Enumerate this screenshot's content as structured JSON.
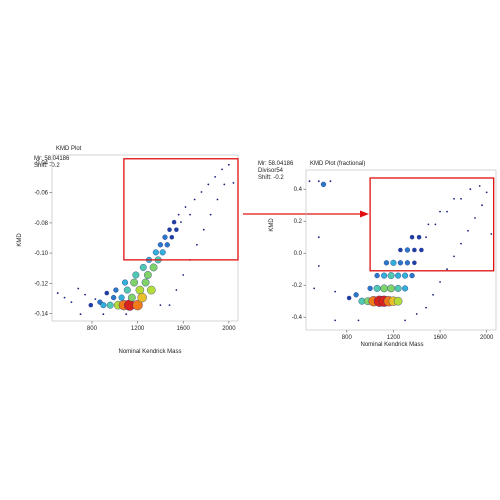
{
  "colors": {
    "bubble_scale": [
      "#1a237e",
      "#1e3fa8",
      "#2a78c8",
      "#33b0d8",
      "#4fc9b0",
      "#7fd36a",
      "#b5dd3a",
      "#e8c12a",
      "#f07a1a",
      "#d8231c"
    ],
    "highlight_box": "#e01010",
    "plot_border": "#bbbbbb",
    "point": "#1a237e"
  },
  "chart_data": [
    {
      "type": "scatter",
      "panel_title": "KMD Plot",
      "info_lines": [
        "Mr: 58.04186",
        "Shift: -0.2"
      ],
      "xlabel": "Nominal Kendrick Mass",
      "ylabel": "KMD",
      "xlim": [
        450,
        2080
      ],
      "ylim": [
        -0.145,
        -0.035
      ],
      "xticks": [
        800,
        1200,
        1600,
        2000
      ],
      "xtick_labels": [
        "800",
        "1200",
        "1600",
        "2000"
      ],
      "yticks": [
        -0.04,
        -0.06,
        -0.08,
        -0.1,
        -0.12,
        -0.14
      ],
      "ytick_labels": [
        "-0.04",
        "-0.06",
        "-0.08",
        "-0.10",
        "-0.12",
        "-0.14"
      ],
      "highlight_region": {
        "x": [
          1080,
          2080
        ],
        "y": [
          -0.1045,
          -0.0375
        ]
      },
      "grid": false,
      "points": [
        [
          500,
          -0.1265,
          0
        ],
        [
          560,
          -0.1295,
          0
        ],
        [
          620,
          -0.1325,
          0
        ],
        [
          680,
          -0.1235,
          0
        ],
        [
          740,
          -0.1275,
          0
        ],
        [
          790,
          -0.1345,
          1
        ],
        [
          830,
          -0.1305,
          0
        ],
        [
          870,
          -0.1325,
          2
        ],
        [
          900,
          -0.1345,
          3
        ],
        [
          930,
          -0.1265,
          1
        ],
        [
          960,
          -0.1345,
          4
        ],
        [
          990,
          -0.1295,
          2
        ],
        [
          1010,
          -0.1245,
          2
        ],
        [
          1030,
          -0.1345,
          6
        ],
        [
          1060,
          -0.1295,
          3
        ],
        [
          1080,
          -0.1345,
          8
        ],
        [
          1090,
          -0.1195,
          3
        ],
        [
          1110,
          -0.1245,
          4
        ],
        [
          1130,
          -0.1345,
          9
        ],
        [
          1150,
          -0.1295,
          5
        ],
        [
          1170,
          -0.1195,
          5
        ],
        [
          1185,
          -0.1145,
          4
        ],
        [
          1200,
          -0.1345,
          8
        ],
        [
          1220,
          -0.1245,
          6
        ],
        [
          1240,
          -0.1295,
          7
        ],
        [
          1250,
          -0.1095,
          4
        ],
        [
          1270,
          -0.1195,
          5
        ],
        [
          1290,
          -0.1145,
          5
        ],
        [
          1300,
          -0.1045,
          3
        ],
        [
          1320,
          -0.1245,
          6
        ],
        [
          1340,
          -0.1095,
          5
        ],
        [
          1360,
          -0.0995,
          3
        ],
        [
          1380,
          -0.1045,
          4
        ],
        [
          1400,
          -0.0945,
          2
        ],
        [
          1420,
          -0.0995,
          3
        ],
        [
          1440,
          -0.0895,
          2
        ],
        [
          1460,
          -0.0945,
          2
        ],
        [
          1480,
          -0.0845,
          1
        ],
        [
          1500,
          -0.0895,
          1
        ],
        [
          1520,
          -0.0795,
          1
        ],
        [
          1540,
          -0.0845,
          1
        ],
        [
          1560,
          -0.0745,
          0
        ],
        [
          1580,
          -0.0795,
          0
        ],
        [
          1620,
          -0.0695,
          0
        ],
        [
          1660,
          -0.0745,
          0
        ],
        [
          1700,
          -0.0645,
          0
        ],
        [
          1760,
          -0.0595,
          0
        ],
        [
          1820,
          -0.0545,
          0
        ],
        [
          1880,
          -0.0495,
          0
        ],
        [
          1940,
          -0.0445,
          0
        ],
        [
          2000,
          -0.0415,
          0
        ],
        [
          1960,
          -0.0545,
          0
        ],
        [
          1900,
          -0.0645,
          0
        ],
        [
          1840,
          -0.0745,
          0
        ],
        [
          1780,
          -0.0845,
          0
        ],
        [
          1720,
          -0.0945,
          0
        ],
        [
          1660,
          -0.1045,
          0
        ],
        [
          1600,
          -0.1145,
          0
        ],
        [
          1540,
          -0.1245,
          0
        ],
        [
          1480,
          -0.1345,
          0
        ],
        [
          1400,
          -0.1345,
          0
        ],
        [
          700,
          -0.1405,
          0
        ],
        [
          900,
          -0.1405,
          0
        ],
        [
          1100,
          -0.1405,
          0
        ],
        [
          2040,
          -0.0535,
          0
        ]
      ]
    },
    {
      "type": "scatter",
      "panel_title": "KMD Plot (fractional)",
      "info_lines": [
        "Mr: 58.04186",
        "Divisor54",
        "Shift: -0.2"
      ],
      "xlabel": "Nominal Kendrick Mass",
      "ylabel": "KMD",
      "xlim": [
        450,
        2080
      ],
      "ylim": [
        -0.48,
        0.52
      ],
      "xticks": [
        800,
        1200,
        1600,
        2000
      ],
      "xtick_labels": [
        "800",
        "1200",
        "1600",
        "2000"
      ],
      "yticks": [
        0.4,
        0.2,
        0.0,
        -0.2,
        -0.4
      ],
      "ytick_labels": [
        "0.4",
        "0.2",
        "0.0",
        "-0.2",
        "-0.4"
      ],
      "highlight_region": {
        "x": [
          1000,
          2060
        ],
        "y": [
          -0.11,
          0.47
        ]
      },
      "grid": false,
      "points": [
        [
          600,
          0.43,
          2
        ],
        [
          560,
          0.45,
          0
        ],
        [
          480,
          0.45,
          0
        ],
        [
          660,
          0.45,
          0
        ],
        [
          520,
          -0.22,
          0
        ],
        [
          700,
          -0.24,
          0
        ],
        [
          820,
          -0.28,
          1
        ],
        [
          880,
          -0.26,
          2
        ],
        [
          930,
          -0.3,
          4
        ],
        [
          980,
          -0.3,
          5
        ],
        [
          1030,
          -0.3,
          8
        ],
        [
          1080,
          -0.3,
          9
        ],
        [
          1120,
          -0.3,
          9
        ],
        [
          1160,
          -0.3,
          8
        ],
        [
          1200,
          -0.3,
          7
        ],
        [
          1240,
          -0.3,
          6
        ],
        [
          1000,
          -0.22,
          2
        ],
        [
          1060,
          -0.22,
          4
        ],
        [
          1120,
          -0.22,
          5
        ],
        [
          1180,
          -0.22,
          5
        ],
        [
          1240,
          -0.22,
          4
        ],
        [
          1300,
          -0.22,
          3
        ],
        [
          1060,
          -0.14,
          2
        ],
        [
          1120,
          -0.14,
          3
        ],
        [
          1180,
          -0.14,
          4
        ],
        [
          1240,
          -0.14,
          3
        ],
        [
          1300,
          -0.14,
          3
        ],
        [
          1360,
          -0.14,
          2
        ],
        [
          1140,
          -0.06,
          2
        ],
        [
          1200,
          -0.06,
          3
        ],
        [
          1260,
          -0.06,
          2
        ],
        [
          1320,
          -0.06,
          2
        ],
        [
          1380,
          -0.06,
          1
        ],
        [
          1260,
          0.02,
          1
        ],
        [
          1320,
          0.02,
          2
        ],
        [
          1380,
          0.02,
          1
        ],
        [
          1440,
          0.02,
          1
        ],
        [
          1360,
          0.1,
          1
        ],
        [
          1420,
          0.1,
          1
        ],
        [
          1480,
          0.1,
          0
        ],
        [
          1500,
          0.18,
          0
        ],
        [
          1560,
          0.18,
          0
        ],
        [
          1600,
          0.26,
          0
        ],
        [
          1660,
          0.26,
          0
        ],
        [
          1720,
          0.34,
          0
        ],
        [
          1780,
          0.34,
          0
        ],
        [
          1860,
          0.4,
          0
        ],
        [
          1940,
          0.42,
          0
        ],
        [
          2000,
          0.38,
          0
        ],
        [
          1960,
          0.3,
          0
        ],
        [
          1900,
          0.22,
          0
        ],
        [
          1840,
          0.14,
          0
        ],
        [
          1780,
          0.06,
          0
        ],
        [
          1720,
          -0.02,
          0
        ],
        [
          1660,
          -0.1,
          0
        ],
        [
          1600,
          -0.18,
          0
        ],
        [
          1540,
          -0.26,
          0
        ],
        [
          1480,
          -0.34,
          0
        ],
        [
          1400,
          -0.38,
          0
        ],
        [
          1300,
          -0.42,
          0
        ],
        [
          900,
          -0.42,
          0
        ],
        [
          700,
          -0.42,
          0
        ],
        [
          560,
          0.1,
          0
        ],
        [
          560,
          -0.08,
          0
        ],
        [
          2040,
          0.12,
          0
        ]
      ]
    }
  ]
}
